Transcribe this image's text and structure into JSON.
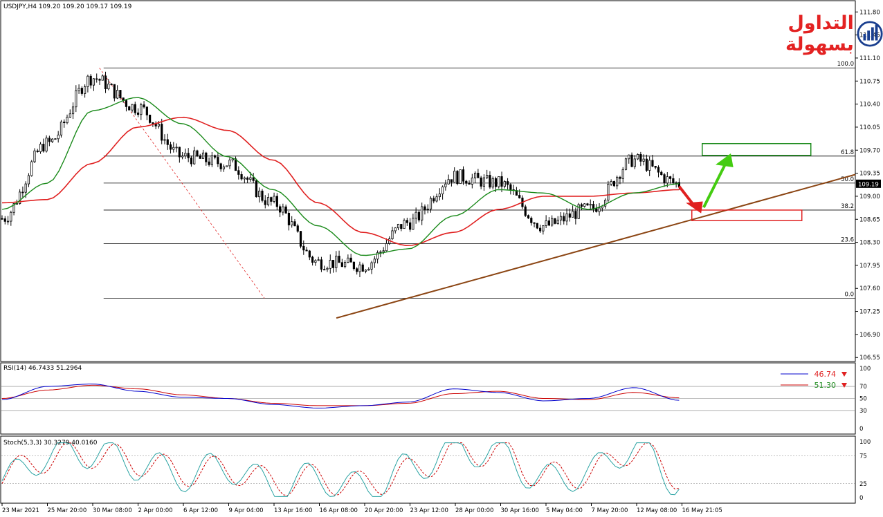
{
  "window": {
    "symbol_header": "USDJPY,H4  109.20 109.20 109.17 109.19",
    "rsi_header": "RSI(14) 46.7433 51.2964",
    "stoch_header": "Stoch(5,3,3) 30.3279 40.0160"
  },
  "brand": {
    "text": "التداول بسهولة",
    "icon": "bar-chart-logo-icon",
    "color": "#e32222"
  },
  "colors": {
    "candle": "#000000",
    "ma_fast": "#1a8a1a",
    "ma_slow": "#e02020",
    "trendline": "#8b4513",
    "fib": "#000000",
    "rsi_line": "#0000cc",
    "rsi_signal": "#cc0000",
    "stoch_main": "#2aa3a3",
    "stoch_signal": "#cc0000",
    "green_arrow": "#44cc11",
    "red_arrow": "#e02020"
  },
  "price_panel": {
    "last_price": "109.19",
    "price_ticks": [
      "111.80",
      "111.45",
      "111.10",
      "110.75",
      "110.40",
      "110.05",
      "109.70",
      "109.35",
      "109.00",
      "108.65",
      "108.30",
      "107.95",
      "107.60",
      "107.25",
      "106.90",
      "106.55"
    ]
  },
  "fib_levels": [
    {
      "label": "100.0",
      "price": 110.95
    },
    {
      "label": "61.8",
      "price": 109.61
    },
    {
      "label": "50.0",
      "price": 109.2
    },
    {
      "label": "38.2",
      "price": 108.79
    },
    {
      "label": "23.6",
      "price": 108.28
    },
    {
      "label": "0.0",
      "price": 107.45
    }
  ],
  "rsi_panel": {
    "ticks": [
      "100",
      "70",
      "50",
      "30",
      "0"
    ],
    "value_main": "46.74",
    "value_signal": "51.30",
    "value_main_color": "#e02020",
    "value_signal_color": "#1a8a1a"
  },
  "stoch_panel": {
    "ticks": [
      "100",
      "75",
      "25",
      "0"
    ]
  },
  "time_axis": [
    "23 Mar 2021",
    "25 Mar 20:00",
    "30 Mar 08:00",
    "2 Apr 00:00",
    "6 Apr 12:00",
    "9 Apr 04:00",
    "13 Apr 16:00",
    "16 Apr 08:00",
    "20 Apr 20:00",
    "23 Apr 12:00",
    "28 Apr 00:00",
    "30 Apr 16:00",
    "5 May 04:00",
    "7 May 20:00",
    "12 May 08:00",
    "16 May 21:05"
  ],
  "chart_data": {
    "type": "candlestick",
    "symbol": "USDJPY",
    "timeframe": "H4",
    "ylim": [
      106.5,
      111.95
    ],
    "x": [
      "23 Mar 2021",
      "25 Mar 20:00",
      "30 Mar 08:00",
      "2 Apr 00:00",
      "6 Apr 12:00",
      "9 Apr 04:00",
      "13 Apr 16:00",
      "16 Apr 08:00",
      "20 Apr 20:00",
      "23 Apr 12:00",
      "28 Apr 00:00",
      "30 Apr 16:00",
      "5 May 04:00",
      "7 May 20:00",
      "12 May 08:00",
      "16 May 21:05"
    ],
    "close": [
      108.66,
      109.8,
      110.8,
      110.35,
      109.6,
      109.5,
      108.9,
      108.0,
      107.95,
      108.6,
      109.3,
      109.2,
      108.55,
      108.8,
      109.55,
      109.19
    ],
    "ma_fast": [
      108.8,
      109.2,
      110.3,
      110.5,
      110.1,
      109.6,
      109.1,
      108.55,
      108.1,
      108.2,
      108.7,
      109.1,
      109.05,
      108.8,
      109.05,
      109.19
    ],
    "ma_slow": [
      108.9,
      108.95,
      109.5,
      110.05,
      110.2,
      110.0,
      109.55,
      108.9,
      108.45,
      108.25,
      108.45,
      108.8,
      109.0,
      109.0,
      109.05,
      109.1
    ],
    "trendline_price": [
      107.15,
      109.33
    ],
    "projection_boxes": [
      {
        "type": "target-zone",
        "price_low": 109.62,
        "price_high": 109.8
      },
      {
        "type": "support-zone",
        "price_low": 108.63,
        "price_high": 108.79
      }
    ],
    "rsi": [
      48,
      70,
      74,
      62,
      52,
      50,
      40,
      34,
      38,
      44,
      66,
      60,
      46,
      50,
      68,
      47
    ],
    "rsi_signal": [
      50,
      64,
      72,
      66,
      56,
      50,
      42,
      38,
      38,
      42,
      58,
      62,
      50,
      48,
      60,
      51
    ],
    "stoch": [
      30,
      75,
      82,
      60,
      40,
      55,
      20,
      35,
      15,
      50,
      88,
      80,
      30,
      45,
      92,
      30
    ],
    "stoch_signal": [
      40,
      70,
      78,
      64,
      45,
      50,
      28,
      34,
      22,
      45,
      80,
      82,
      38,
      42,
      86,
      40
    ]
  }
}
